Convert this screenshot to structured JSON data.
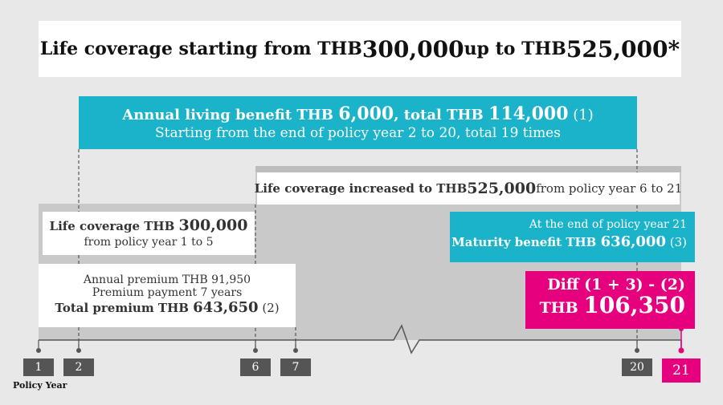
{
  "title": {
    "part1": "Life coverage starting from THB ",
    "amount1": "300,000",
    "part2": " up to THB ",
    "amount2": "525,000*"
  },
  "living_benefit": {
    "line1_a": "Annual living benefit THB ",
    "amount": "6,000",
    "line1_b": ", total THB ",
    "total": "114,000",
    "ref": " (1)",
    "line2": "Starting from the end of policy year 2 to 20, total 19 times"
  },
  "increased_coverage": {
    "label": "Life coverage increased to THB ",
    "amount": "525,000",
    "suffix": " from policy year 6 to 21"
  },
  "initial_coverage": {
    "label": "Life coverage THB ",
    "amount": "300,000",
    "line2": "from policy year 1 to 5"
  },
  "premium": {
    "line1": "Annual premium THB 91,950",
    "line2": "Premium payment 7 years",
    "line3_label": "Total premium THB ",
    "line3_amount": "643,650",
    "line3_ref": " (2)"
  },
  "maturity": {
    "line1": "At the end of policy year 21",
    "line2_label": "Maturity benefit THB ",
    "line2_amount": "636,000",
    "line2_ref": " (3)"
  },
  "diff": {
    "line1": "Diff (1 + 3) - (2)",
    "currency": "THB ",
    "amount": "106,350"
  },
  "timeline": {
    "years": [
      "1",
      "2",
      "6",
      "7",
      "20",
      "21"
    ],
    "label": "Policy Year"
  },
  "colors": {
    "teal": "#1ab3c9",
    "magenta": "#e6007e",
    "dark_gray": "#555555",
    "coverage_gray": "#c9c9c9"
  }
}
